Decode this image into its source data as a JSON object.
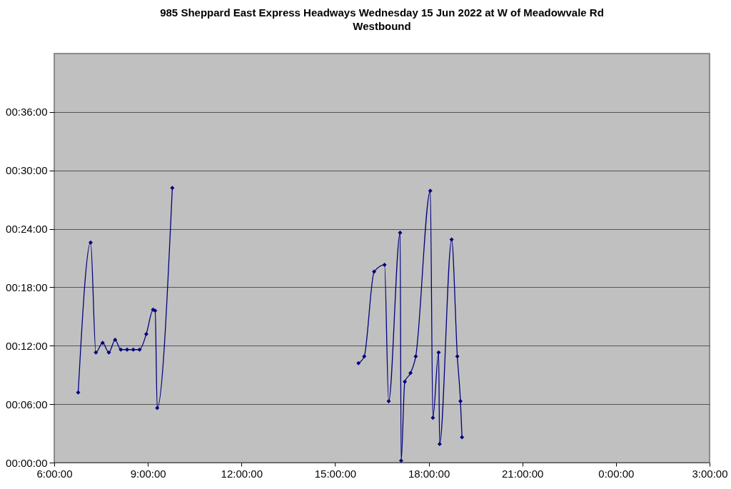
{
  "chart_data": {
    "type": "line",
    "title": "985 Sheppard East Express Headways Wednesday 15 Jun 2022 at W of Meadowvale Rd Westbound",
    "xlim": [
      "2022-06-15T06:00",
      "2022-06-16T03:00"
    ],
    "xticks": [
      {
        "value": "2022-06-15T06:00",
        "label": "6:00:00"
      },
      {
        "value": "2022-06-15T09:00",
        "label": "9:00:00"
      },
      {
        "value": "2022-06-15T12:00",
        "label": "12:00:00"
      },
      {
        "value": "2022-06-15T15:00",
        "label": "15:00:00"
      },
      {
        "value": "2022-06-15T18:00",
        "label": "18:00:00"
      },
      {
        "value": "2022-06-15T21:00",
        "label": "21:00:00"
      },
      {
        "value": "2022-06-16T00:00",
        "label": "0:00:00"
      },
      {
        "value": "2022-06-16T03:00",
        "label": "3:00:00"
      }
    ],
    "ylim": [
      0,
      42
    ],
    "yticks": [
      {
        "value": 0,
        "label": "00:00:00"
      },
      {
        "value": 6,
        "label": "00:06:00"
      },
      {
        "value": 12,
        "label": "00:12:00"
      },
      {
        "value": 18,
        "label": "00:18:00"
      },
      {
        "value": 24,
        "label": "00:24:00"
      },
      {
        "value": 30,
        "label": "00:30:00"
      },
      {
        "value": 36,
        "label": "00:36:00"
      }
    ],
    "grid": "y",
    "marker": "diamond",
    "line_style": "solid",
    "series": [
      {
        "color": "#000080",
        "x": [
          "2022-06-15T06:46",
          "2022-06-15T07:10",
          "2022-06-15T07:20",
          "2022-06-15T07:33",
          "2022-06-15T07:45",
          "2022-06-15T07:57",
          "2022-06-15T08:08",
          "2022-06-15T08:20",
          "2022-06-15T08:32",
          "2022-06-15T08:44",
          "2022-06-15T08:57",
          "2022-06-15T09:10",
          "2022-06-15T09:14",
          "2022-06-15T09:18",
          "2022-06-15T09:47"
        ],
        "values": [
          7.2,
          22.6,
          11.3,
          12.3,
          11.3,
          12.6,
          11.6,
          11.6,
          11.6,
          11.6,
          13.2,
          15.7,
          15.6,
          5.6,
          28.2
        ]
      },
      {
        "color": "#000080",
        "x": [
          "2022-06-15T15:45",
          "2022-06-15T15:56",
          "2022-06-15T16:15",
          "2022-06-15T16:35",
          "2022-06-15T16:43",
          "2022-06-15T17:05",
          "2022-06-15T17:07",
          "2022-06-15T17:14",
          "2022-06-15T17:25",
          "2022-06-15T17:35",
          "2022-06-15T18:03",
          "2022-06-15T18:08",
          "2022-06-15T18:19",
          "2022-06-15T18:21",
          "2022-06-15T18:44",
          "2022-06-15T18:55",
          "2022-06-15T19:01",
          "2022-06-15T19:04"
        ],
        "values": [
          10.2,
          10.9,
          19.6,
          20.3,
          6.3,
          23.6,
          0.2,
          8.3,
          9.2,
          10.9,
          27.9,
          4.6,
          11.3,
          1.9,
          22.9,
          10.9,
          6.3,
          2.6
        ]
      }
    ]
  }
}
